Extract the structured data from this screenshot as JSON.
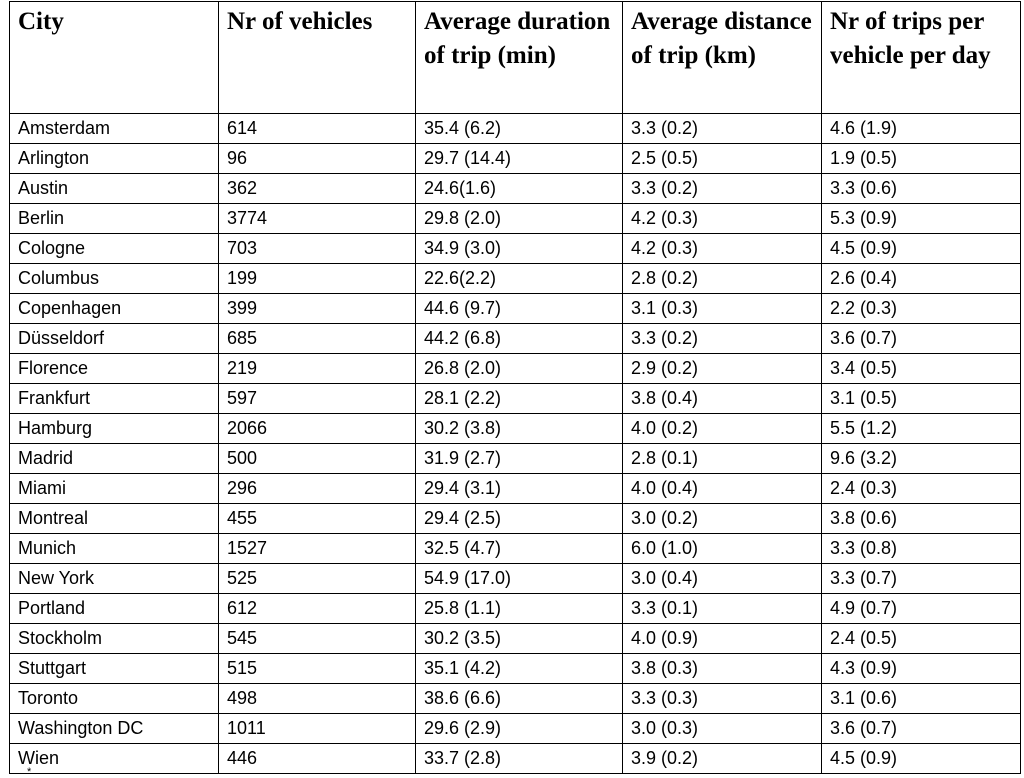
{
  "table": {
    "headers": [
      "City",
      "Nr of vehicles",
      "Average duration of trip (min)",
      "Average distance of trip (km)",
      "Nr of trips per vehicle per day"
    ],
    "rows": [
      [
        "Amsterdam",
        "614",
        "35.4 (6.2)",
        "3.3 (0.2)",
        "4.6 (1.9)"
      ],
      [
        "Arlington",
        "96",
        "29.7 (14.4)",
        "2.5 (0.5)",
        "1.9 (0.5)"
      ],
      [
        "Austin",
        "362",
        "24.6(1.6)",
        "3.3 (0.2)",
        "3.3 (0.6)"
      ],
      [
        "Berlin",
        "3774",
        "29.8 (2.0)",
        "4.2 (0.3)",
        "5.3 (0.9)"
      ],
      [
        "Cologne",
        "703",
        "34.9 (3.0)",
        "4.2 (0.3)",
        "4.5 (0.9)"
      ],
      [
        "Columbus",
        "199",
        "22.6(2.2)",
        "2.8 (0.2)",
        "2.6 (0.4)"
      ],
      [
        "Copenhagen",
        "399",
        "44.6 (9.7)",
        "3.1 (0.3)",
        "2.2 (0.3)"
      ],
      [
        "Düsseldorf",
        "685",
        "44.2 (6.8)",
        "3.3 (0.2)",
        "3.6 (0.7)"
      ],
      [
        "Florence",
        "219",
        "26.8 (2.0)",
        "2.9 (0.2)",
        "3.4 (0.5)"
      ],
      [
        "Frankfurt",
        "597",
        "28.1 (2.2)",
        "3.8 (0.4)",
        "3.1 (0.5)"
      ],
      [
        "Hamburg",
        "2066",
        "30.2 (3.8)",
        "4.0 (0.2)",
        "5.5 (1.2)"
      ],
      [
        "Madrid",
        "500",
        "31.9 (2.7)",
        "2.8 (0.1)",
        "9.6 (3.2)"
      ],
      [
        "Miami",
        "296",
        "29.4 (3.1)",
        "4.0 (0.4)",
        "2.4 (0.3)"
      ],
      [
        "Montreal",
        "455",
        "29.4 (2.5)",
        "3.0 (0.2)",
        "3.8 (0.6)"
      ],
      [
        "Munich",
        "1527",
        "32.5 (4.7)",
        "6.0 (1.0)",
        "3.3 (0.8)"
      ],
      [
        "New York",
        "525",
        "54.9 (17.0)",
        "3.0 (0.4)",
        "3.3 (0.7)"
      ],
      [
        "Portland",
        "612",
        "25.8 (1.1)",
        "3.3 (0.1)",
        "4.9 (0.7)"
      ],
      [
        "Stockholm",
        "545",
        "30.2 (3.5)",
        "4.0 (0.9)",
        "2.4 (0.5)"
      ],
      [
        "Stuttgart",
        "515",
        "35.1 (4.2)",
        "3.8 (0.3)",
        "4.3 (0.9)"
      ],
      [
        "Toronto",
        "498",
        "38.6 (6.6)",
        "3.3 (0.3)",
        "3.1 (0.6)"
      ],
      [
        "Washington DC",
        "1011",
        "29.6 (2.9)",
        "3.0 (0.3)",
        "3.6 (0.7)"
      ],
      [
        "Wien",
        "446",
        "33.7 (2.8)",
        "3.9 (0.2)",
        "4.5 (0.9)"
      ]
    ]
  },
  "footnote": "*"
}
